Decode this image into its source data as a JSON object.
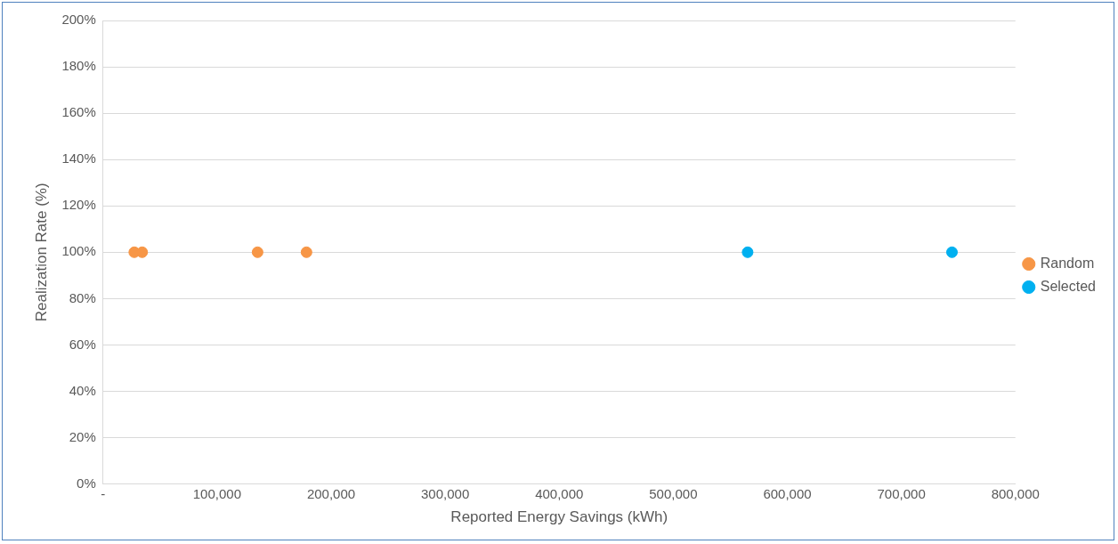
{
  "chart_data": {
    "type": "scatter",
    "xlabel": "Reported Energy Savings (kWh)",
    "ylabel": "Realization Rate (%)",
    "series": [
      {
        "name": "Random",
        "color": "#f79646",
        "x": [
          27400,
          34300,
          135500,
          178400
        ],
        "values": [
          100,
          100,
          100,
          100
        ]
      },
      {
        "name": "Selected",
        "color": "#00b0f0",
        "x": [
          565200,
          744400
        ],
        "values": [
          100,
          100
        ]
      }
    ],
    "xlim": [
      0,
      800000
    ],
    "xticks": [
      {
        "value": 0,
        "label": "-"
      },
      {
        "value": 100000,
        "label": "100,000"
      },
      {
        "value": 200000,
        "label": "200,000"
      },
      {
        "value": 300000,
        "label": "300,000"
      },
      {
        "value": 400000,
        "label": "400,000"
      },
      {
        "value": 500000,
        "label": "500,000"
      },
      {
        "value": 600000,
        "label": "600,000"
      },
      {
        "value": 700000,
        "label": "700,000"
      },
      {
        "value": 800000,
        "label": "800,000"
      }
    ],
    "ylim": [
      0,
      200
    ],
    "yticks": [
      {
        "value": 0,
        "label": "0%"
      },
      {
        "value": 20,
        "label": "20%"
      },
      {
        "value": 40,
        "label": "40%"
      },
      {
        "value": 60,
        "label": "60%"
      },
      {
        "value": 80,
        "label": "80%"
      },
      {
        "value": 100,
        "label": "100%"
      },
      {
        "value": 120,
        "label": "120%"
      },
      {
        "value": 140,
        "label": "140%"
      },
      {
        "value": 160,
        "label": "160%"
      },
      {
        "value": 180,
        "label": "180%"
      },
      {
        "value": 200,
        "label": "200%"
      }
    ],
    "grid": "y",
    "legend": "right",
    "marker": "circle"
  }
}
